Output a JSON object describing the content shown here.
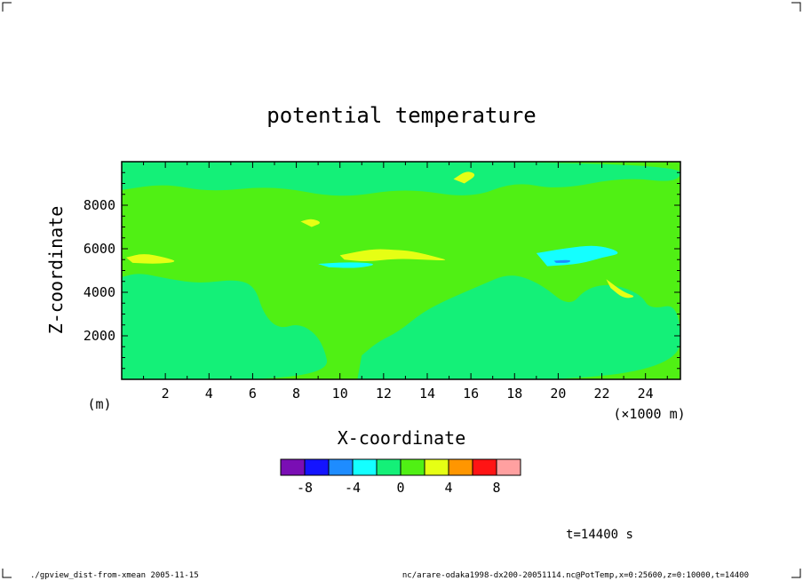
{
  "chart_data": {
    "type": "heatmap",
    "title": "potential temperature",
    "xlabel": "X-coordinate",
    "ylabel": "Z-coordinate",
    "x_unit_label": "(m)",
    "x_scale_label": "(×1000 m)",
    "xlim": [
      0,
      25.6
    ],
    "ylim": [
      0,
      10000
    ],
    "x_ticks": [
      "2",
      "4",
      "6",
      "8",
      "10",
      "12",
      "14",
      "16",
      "18",
      "20",
      "22",
      "24"
    ],
    "y_ticks": [
      "2000",
      "4000",
      "6000",
      "8000"
    ],
    "colorbar": {
      "colors": [
        "#7a0eb4",
        "#1414ff",
        "#1e8cff",
        "#14ffff",
        "#14f078",
        "#50f014",
        "#e6ff14",
        "#ff9600",
        "#ff1414",
        "#ffa0a0"
      ],
      "labels": [
        "-8",
        "-4",
        "0",
        "4",
        "8"
      ],
      "label_values": [
        -8,
        -4,
        0,
        4,
        8
      ],
      "value_range": [
        -10,
        10
      ]
    },
    "regions": [
      {
        "level": 0,
        "color": "#50f014",
        "label": "light green background"
      },
      {
        "level": -2,
        "color": "#14f078",
        "label": "upper band z 8500-10000"
      },
      {
        "level": -2,
        "color": "#14f078",
        "label": "lower left domain"
      },
      {
        "level": -2,
        "color": "#14f078",
        "label": "lower right domain"
      },
      {
        "level": 2,
        "color": "#e6ff14",
        "label": "x 0.2-2.5 z 5300-5800"
      },
      {
        "level": 2,
        "color": "#e6ff14",
        "label": "x 10-15 z 5300-6000"
      },
      {
        "level": 2,
        "color": "#e6ff14",
        "label": "x 8.2-9.2 z 7000-7400"
      },
      {
        "level": 2,
        "color": "#e6ff14",
        "label": "x 15.2-16.2 z 9000-9600"
      },
      {
        "level": 2,
        "color": "#e6ff14",
        "label": "x 22.2-23.6 z 3700-4600"
      },
      {
        "level": -4,
        "color": "#14ffff",
        "label": "x 9-11.8 z 5100-5400"
      },
      {
        "level": -4,
        "color": "#14ffff",
        "label": "x 19-23 z 5200-6200"
      },
      {
        "level": -6,
        "color": "#1e8cff",
        "label": "x 19.8-20.6 z 5350-5500"
      }
    ]
  },
  "footer": {
    "time_label": "t=14400 s",
    "left_text": "./gpview_dist-from-xmean  2005-11-15",
    "right_text": "nc/arare-odaka1998-dx200-20051114.nc@PotTemp,x=0:25600,z=0:10000,t=14400"
  }
}
